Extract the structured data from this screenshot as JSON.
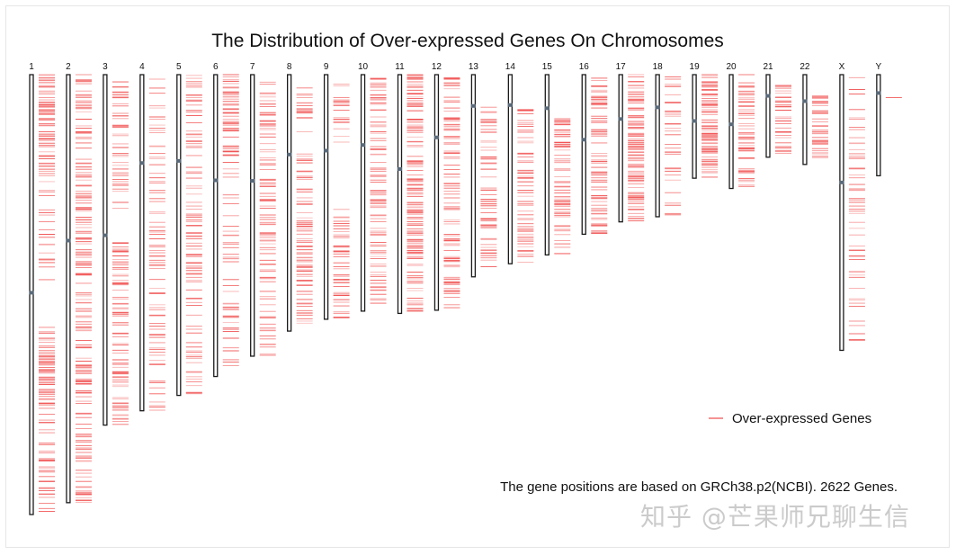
{
  "chart_data": {
    "type": "ideogram",
    "title": "The Distribution of Over-expressed Genes On Chromosomes",
    "legend": {
      "label": "Over-expressed Genes",
      "position": "right",
      "color": "#f04a4a"
    },
    "footnote": "The gene positions are based on GRCh38.p2(NCBI). 2622 Genes.",
    "units": "Mb",
    "chromosomes": [
      {
        "name": "1",
        "length": 248.9,
        "centromere": 123.4,
        "seed": 11,
        "segments": [
          [
            0,
            45,
            0.7
          ],
          [
            45,
            120,
            0.32
          ],
          [
            143,
            185,
            0.8
          ],
          [
            185,
            248,
            0.4
          ]
        ]
      },
      {
        "name": "2",
        "length": 242.2,
        "centromere": 93.9,
        "seed": 23,
        "segments": [
          [
            0,
            242,
            0.42
          ]
        ]
      },
      {
        "name": "3",
        "length": 198.3,
        "centromere": 90.9,
        "seed": 37,
        "segments": [
          [
            3,
            80,
            0.35
          ],
          [
            95,
            198,
            0.45
          ]
        ]
      },
      {
        "name": "4",
        "length": 190.2,
        "centromere": 50.0,
        "seed": 41,
        "segments": [
          [
            0,
            190,
            0.3
          ]
        ]
      },
      {
        "name": "5",
        "length": 181.5,
        "centromere": 48.8,
        "seed": 53,
        "segments": [
          [
            0,
            181,
            0.32
          ]
        ]
      },
      {
        "name": "6",
        "length": 170.8,
        "centromere": 59.8,
        "seed": 61,
        "segments": [
          [
            0,
            50,
            0.6
          ],
          [
            50,
            170,
            0.28
          ]
        ]
      },
      {
        "name": "7",
        "length": 159.3,
        "centromere": 60.1,
        "seed": 71,
        "segments": [
          [
            0,
            159,
            0.4
          ]
        ]
      },
      {
        "name": "8",
        "length": 145.1,
        "centromere": 45.2,
        "seed": 83,
        "segments": [
          [
            5,
            145,
            0.4
          ]
        ]
      },
      {
        "name": "9",
        "length": 138.4,
        "centromere": 43.0,
        "seed": 97,
        "segments": [
          [
            5,
            40,
            0.25
          ],
          [
            75,
            138,
            0.45
          ]
        ]
      },
      {
        "name": "10",
        "length": 133.8,
        "centromere": 39.8,
        "seed": 101,
        "segments": [
          [
            0,
            133,
            0.45
          ]
        ]
      },
      {
        "name": "11",
        "length": 135.1,
        "centromere": 53.4,
        "seed": 113,
        "segments": [
          [
            0,
            135,
            0.55
          ]
        ]
      },
      {
        "name": "12",
        "length": 133.3,
        "centromere": 35.5,
        "seed": 127,
        "segments": [
          [
            0,
            133,
            0.45
          ]
        ]
      },
      {
        "name": "13",
        "length": 114.4,
        "centromere": 17.7,
        "seed": 131,
        "segments": [
          [
            18,
            114,
            0.4
          ]
        ]
      },
      {
        "name": "14",
        "length": 107.0,
        "centromere": 17.2,
        "seed": 139,
        "segments": [
          [
            18,
            107,
            0.45
          ]
        ]
      },
      {
        "name": "15",
        "length": 102.0,
        "centromere": 19.0,
        "seed": 149,
        "segments": [
          [
            25,
            102,
            0.5
          ]
        ]
      },
      {
        "name": "16",
        "length": 90.3,
        "centromere": 36.8,
        "seed": 157,
        "segments": [
          [
            0,
            90,
            0.48
          ]
        ]
      },
      {
        "name": "17",
        "length": 83.3,
        "centromere": 25.1,
        "seed": 163,
        "segments": [
          [
            0,
            83,
            0.7
          ]
        ]
      },
      {
        "name": "18",
        "length": 80.4,
        "centromere": 18.5,
        "seed": 173,
        "segments": [
          [
            0,
            80,
            0.3
          ]
        ]
      },
      {
        "name": "19",
        "length": 58.6,
        "centromere": 26.2,
        "seed": 181,
        "segments": [
          [
            0,
            58,
            0.8
          ]
        ]
      },
      {
        "name": "20",
        "length": 64.4,
        "centromere": 28.1,
        "seed": 191,
        "segments": [
          [
            0,
            64,
            0.55
          ]
        ]
      },
      {
        "name": "21",
        "length": 46.7,
        "centromere": 12.0,
        "seed": 199,
        "segments": [
          [
            5,
            46,
            0.45
          ]
        ]
      },
      {
        "name": "22",
        "length": 50.8,
        "centromere": 15.0,
        "seed": 211,
        "segments": [
          [
            12,
            50,
            0.6
          ]
        ]
      },
      {
        "name": "X",
        "length": 156.0,
        "centromere": 61.0,
        "seed": 223,
        "segments": [
          [
            0,
            156,
            0.22
          ]
        ]
      },
      {
        "name": "Y",
        "length": 57.2,
        "centromere": 10.4,
        "seed": 229,
        "segments": [
          [
            13,
            14,
            1.0
          ]
        ]
      }
    ]
  },
  "watermark": "知乎 @芒果师兄聊生信"
}
